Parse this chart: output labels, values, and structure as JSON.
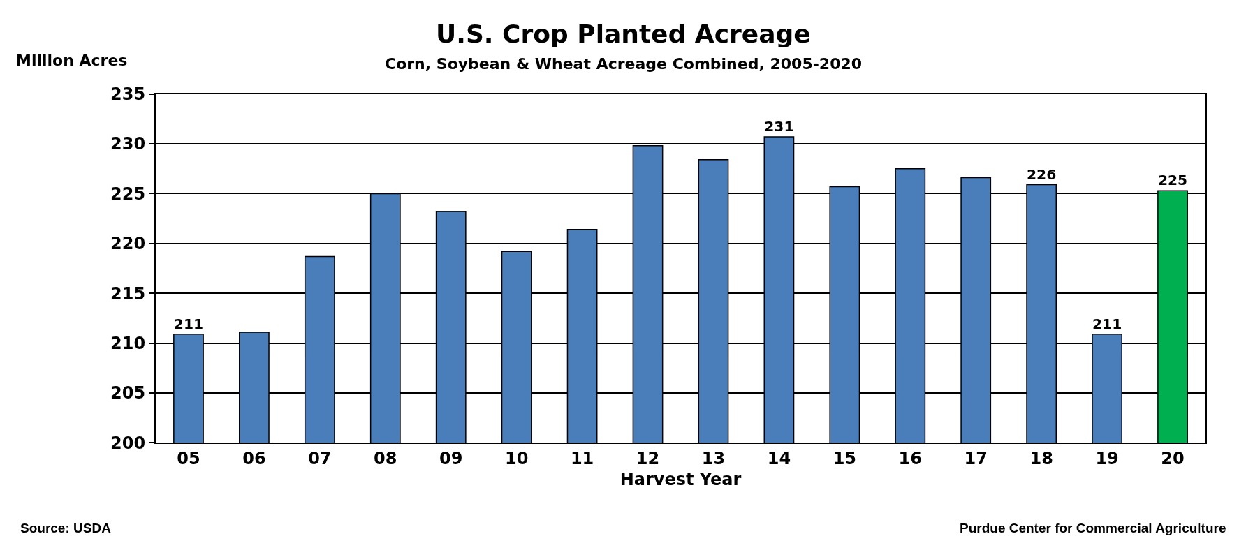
{
  "chart_data": {
    "type": "bar",
    "title": "U.S. Crop Planted Acreage",
    "subtitle": "Corn, Soybean & Wheat Acreage Combined, 2005-2020",
    "xlabel": "Harvest Year",
    "ylabel": "Million Acres",
    "categories": [
      "05",
      "06",
      "07",
      "08",
      "09",
      "10",
      "11",
      "12",
      "13",
      "14",
      "15",
      "16",
      "17",
      "18",
      "19",
      "20"
    ],
    "values": [
      210.9,
      211.1,
      218.7,
      225.0,
      223.2,
      219.2,
      221.4,
      229.8,
      228.4,
      230.7,
      225.7,
      227.5,
      226.6,
      225.9,
      210.9,
      225.3
    ],
    "colors": [
      "#4a7ebb",
      "#4a7ebb",
      "#4a7ebb",
      "#4a7ebb",
      "#4a7ebb",
      "#4a7ebb",
      "#4a7ebb",
      "#4a7ebb",
      "#4a7ebb",
      "#4a7ebb",
      "#4a7ebb",
      "#4a7ebb",
      "#4a7ebb",
      "#4a7ebb",
      "#4a7ebb",
      "#00b050"
    ],
    "value_labels": [
      "211",
      null,
      null,
      null,
      null,
      null,
      null,
      null,
      null,
      "231",
      null,
      null,
      null,
      "226",
      "211",
      "225"
    ],
    "ylim": [
      200,
      235
    ],
    "yticks": [
      200,
      205,
      210,
      215,
      220,
      225,
      230,
      235
    ],
    "grid": "y",
    "annotations": [
      "Source: USDA",
      "Purdue Center for Commercial Agriculture"
    ]
  }
}
